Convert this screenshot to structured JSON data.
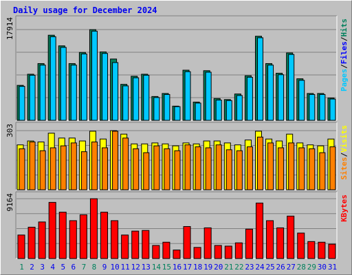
{
  "title": "Daily usage for December 2024",
  "colors": {
    "hits": "#00805c",
    "files": "#0000ff",
    "pages": "#00c8ff",
    "visits": "#ffff00",
    "sites": "#ff8000",
    "kbytes": "#ff0000",
    "weekday_label": "#0000ee",
    "weekend_label": "#00805c"
  },
  "chart_data": [
    {
      "type": "bar",
      "name": "hits-files-pages",
      "categories": [
        "1",
        "2",
        "3",
        "4",
        "5",
        "6",
        "7",
        "8",
        "9",
        "10",
        "11",
        "12",
        "13",
        "14",
        "15",
        "16",
        "17",
        "18",
        "19",
        "20",
        "21",
        "22",
        "23",
        "24",
        "25",
        "26",
        "27",
        "28",
        "29",
        "30",
        "31"
      ],
      "ymax_label": "17914",
      "ylim": [
        0,
        17914
      ],
      "legend": [
        {
          "text": "Pages",
          "color_key": "pages"
        },
        {
          "text": "/",
          "color_key": "sep"
        },
        {
          "text": "Files",
          "color_key": "files"
        },
        {
          "text": "/",
          "color_key": "sep"
        },
        {
          "text": "Hits",
          "color_key": "hits"
        }
      ],
      "series": [
        {
          "name": "Hits",
          "values": [
            6900,
            9100,
            11200,
            16800,
            14700,
            11200,
            13400,
            17900,
            13500,
            12100,
            7100,
            8700,
            9100,
            4700,
            5300,
            2800,
            9900,
            3600,
            9800,
            4300,
            4100,
            5200,
            8800,
            16600,
            11200,
            9300,
            13300,
            8200,
            5300,
            5300,
            4400
          ]
        },
        {
          "name": "Pages",
          "values": [
            6700,
            8900,
            10900,
            16500,
            14400,
            10900,
            13100,
            17600,
            13200,
            11400,
            6800,
            8400,
            8900,
            4500,
            5100,
            2700,
            9600,
            3400,
            9500,
            4000,
            3900,
            4900,
            8500,
            16300,
            10900,
            9000,
            13000,
            7900,
            5100,
            5100,
            4200
          ]
        }
      ]
    },
    {
      "type": "bar",
      "name": "visits-sites",
      "categories": [
        "1",
        "2",
        "3",
        "4",
        "5",
        "6",
        "7",
        "8",
        "9",
        "10",
        "11",
        "12",
        "13",
        "14",
        "15",
        "16",
        "17",
        "18",
        "19",
        "20",
        "21",
        "22",
        "23",
        "24",
        "25",
        "26",
        "27",
        "28",
        "29",
        "30",
        "31"
      ],
      "ymax_label": "303",
      "ylim": [
        0,
        303
      ],
      "legend": [
        {
          "text": "Sites",
          "color_key": "sites"
        },
        {
          "text": "/",
          "color_key": "sep"
        },
        {
          "text": "Visits",
          "color_key": "visits"
        }
      ],
      "series": [
        {
          "name": "Visits",
          "values": [
            230,
            250,
            245,
            290,
            265,
            265,
            250,
            300,
            260,
            303,
            285,
            235,
            235,
            240,
            235,
            225,
            240,
            235,
            250,
            250,
            240,
            230,
            255,
            300,
            260,
            250,
            285,
            240,
            230,
            225,
            260
          ]
        },
        {
          "name": "Sites",
          "values": [
            210,
            245,
            200,
            215,
            225,
            240,
            195,
            245,
            215,
            300,
            265,
            210,
            190,
            225,
            210,
            200,
            230,
            220,
            215,
            230,
            205,
            200,
            220,
            270,
            240,
            215,
            240,
            215,
            210,
            190,
            220
          ]
        }
      ]
    },
    {
      "type": "bar",
      "name": "kbytes",
      "categories": [
        "1",
        "2",
        "3",
        "4",
        "5",
        "6",
        "7",
        "8",
        "9",
        "10",
        "11",
        "12",
        "13",
        "14",
        "15",
        "16",
        "17",
        "18",
        "19",
        "20",
        "21",
        "22",
        "23",
        "24",
        "25",
        "26",
        "27",
        "28",
        "29",
        "30",
        "31"
      ],
      "ymax_label": "9164",
      "ylim": [
        0,
        9164
      ],
      "legend": [
        {
          "text": "KBytes",
          "color_key": "kbytes"
        }
      ],
      "series": [
        {
          "name": "KBytes",
          "values": [
            3600,
            4800,
            5600,
            8600,
            7100,
            5800,
            6700,
            9164,
            7100,
            5800,
            3600,
            4200,
            4300,
            2000,
            2500,
            1300,
            4900,
            1700,
            4700,
            2000,
            1900,
            2400,
            4500,
            8500,
            5800,
            4700,
            6500,
            3900,
            2600,
            2500,
            2200
          ]
        }
      ]
    }
  ]
}
